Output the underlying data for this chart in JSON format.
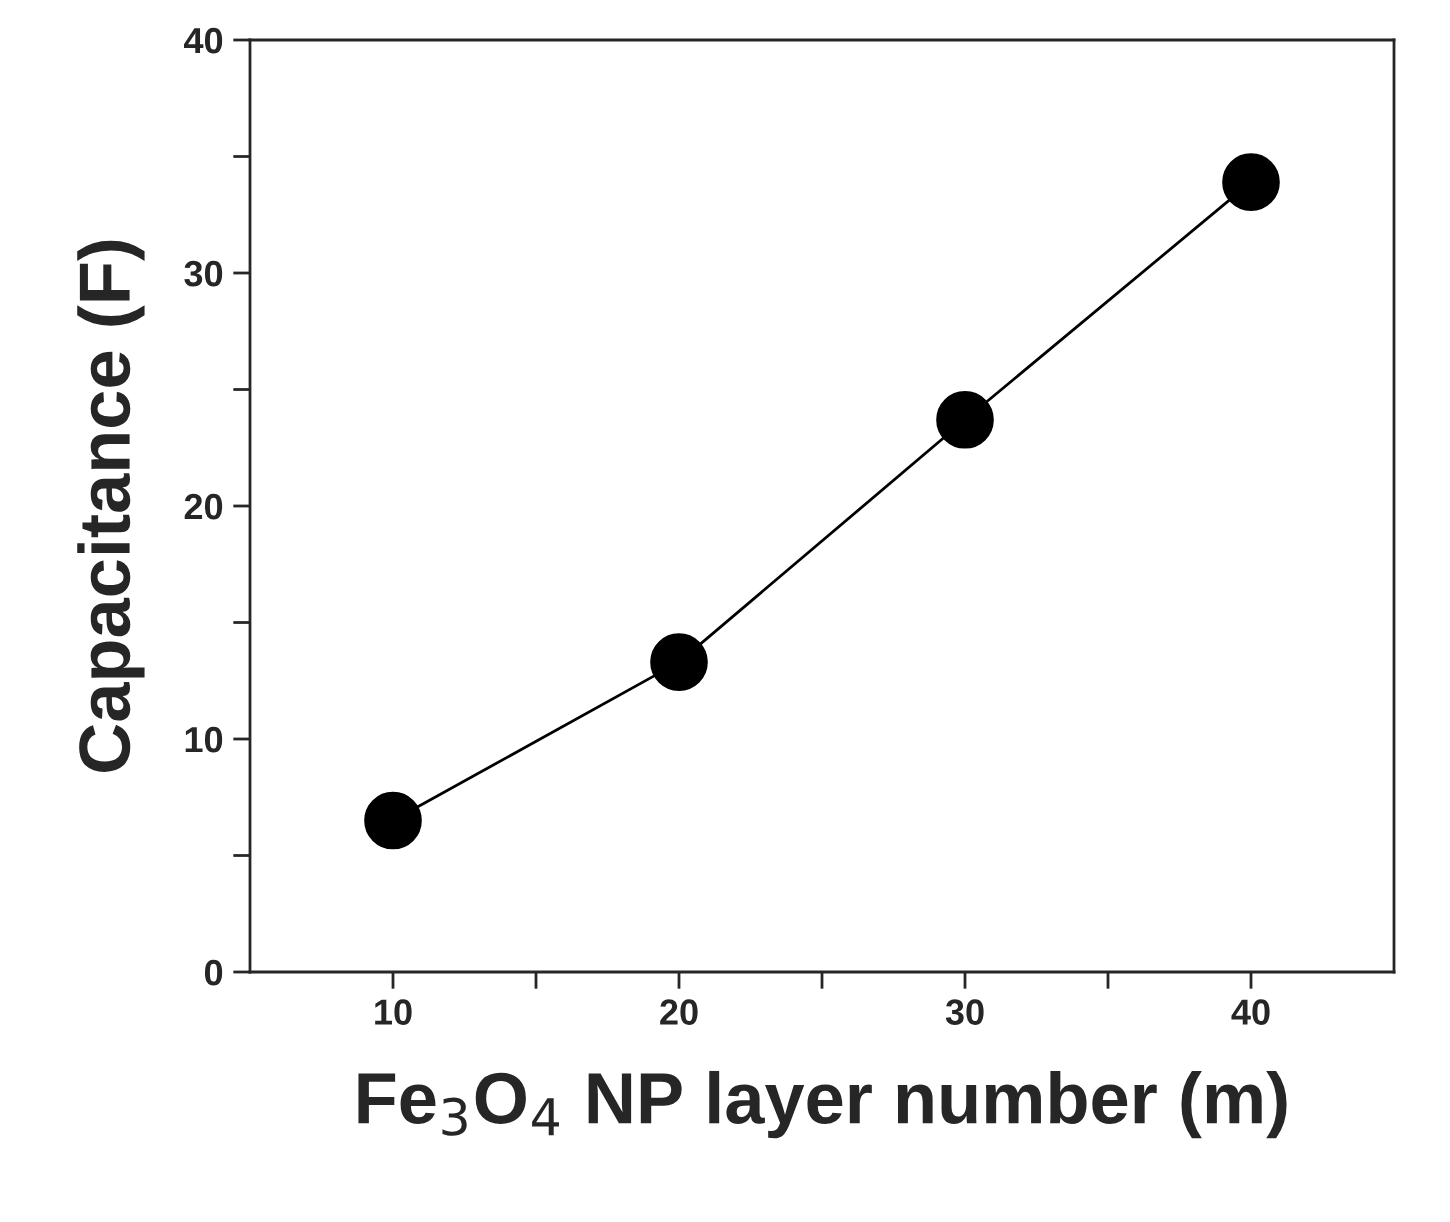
{
  "chart_data": {
    "type": "line",
    "xlabel": "Fe$_{3}$O$_{4}$ NP layer number (m)",
    "ylabel": "Capacitance (F)",
    "x": [
      10,
      20,
      30,
      40
    ],
    "series": [
      {
        "color": "#000000",
        "values": [
          6.5,
          13.3,
          23.7,
          33.9
        ]
      }
    ],
    "marker": "circle",
    "line_style": "solid",
    "grid": false,
    "legend": false,
    "xlim": [
      5,
      45
    ],
    "xticks": [
      10,
      {
        "value": 15,
        "label": null
      },
      20,
      {
        "value": 25,
        "label": null
      },
      30,
      {
        "value": 35,
        "label": null
      },
      40
    ],
    "ylim": [
      0,
      40
    ],
    "yticks": [
      0,
      {
        "value": 5,
        "label": null
      },
      10,
      {
        "value": 15,
        "label": null
      },
      20,
      {
        "value": 25,
        "label": null
      },
      30,
      {
        "value": 35,
        "label": null
      },
      40
    ]
  }
}
